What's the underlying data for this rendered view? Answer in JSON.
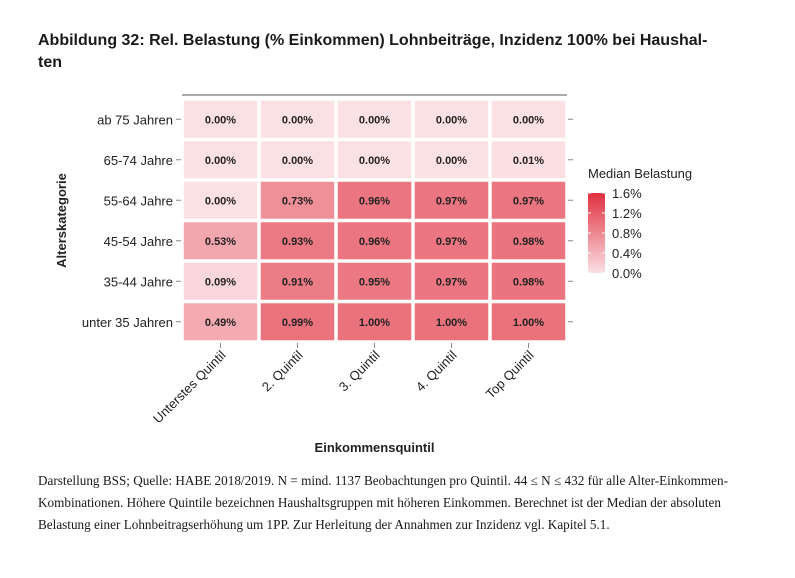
{
  "title": "Abbildung 32: Rel. Belastung (% Einkommen) Lohnbeiträge, Inzidenz 100% bei Haushal-ten",
  "title_line1": "Abbildung 32: Rel. Belastung (% Einkommen) Lohnbeiträge, Inzidenz 100% bei Haushal-",
  "title_line2": "ten",
  "caption": "Darstellung BSS; Quelle: HABE 2018/2019. N = mind. 1137 Beobachtungen pro Quintil. 44 ≤ N ≤ 432 für alle Alter-Einkommen-Kombinationen. Höhere Quintile bezeichnen Haushaltsgruppen mit höheren Einkommen. Berechnet ist der Median der absoluten Belastung einer Lohnbeitragserhöhung um 1PP. Zur Herleitung der Annahmen zur Inzidenz vgl. Kapitel 5.1.",
  "colors": {
    "low": "#fbe0e4",
    "high": "#e0303f",
    "tick": "#888888",
    "grid_line": "#ffffff"
  },
  "chart_data": {
    "type": "heatmap",
    "xlabel": "Einkommensquintil",
    "ylabel": "Alterskategorie",
    "x_categories": [
      "Unterstes Quintil",
      "2. Quintil",
      "3. Quintil",
      "4. Quintil",
      "Top Quintil"
    ],
    "y_categories": [
      "ab 75 Jahren",
      "65-74 Jahre",
      "55-64 Jahre",
      "45-54 Jahre",
      "35-44 Jahre",
      "unter 35 Jahren"
    ],
    "values": [
      [
        0.0,
        0.0,
        0.0,
        0.0,
        0.0
      ],
      [
        0.0,
        0.0,
        0.0,
        0.0,
        0.01
      ],
      [
        0.0,
        0.73,
        0.96,
        0.97,
        0.97
      ],
      [
        0.53,
        0.93,
        0.96,
        0.97,
        0.98
      ],
      [
        0.09,
        0.91,
        0.95,
        0.97,
        0.98
      ],
      [
        0.49,
        0.99,
        1.0,
        1.0,
        1.0
      ]
    ],
    "labels": [
      [
        "0.00%",
        "0.00%",
        "0.00%",
        "0.00%",
        "0.00%"
      ],
      [
        "0.00%",
        "0.00%",
        "0.00%",
        "0.00%",
        "0.01%"
      ],
      [
        "0.00%",
        "0.73%",
        "0.96%",
        "0.97%",
        "0.97%"
      ],
      [
        "0.53%",
        "0.93%",
        "0.96%",
        "0.97%",
        "0.98%"
      ],
      [
        "0.09%",
        "0.91%",
        "0.95%",
        "0.97%",
        "0.98%"
      ],
      [
        "0.49%",
        "0.99%",
        "1.00%",
        "1.00%",
        "1.00%"
      ]
    ],
    "legend": {
      "title": "Median Belastung",
      "ticks": [
        1.6,
        1.2,
        0.8,
        0.4,
        0.0
      ],
      "tick_labels": [
        "1.6%",
        "1.2%",
        "0.8%",
        "0.4%",
        "0.0%"
      ],
      "range": [
        0.0,
        1.6
      ],
      "placement": "right"
    }
  }
}
